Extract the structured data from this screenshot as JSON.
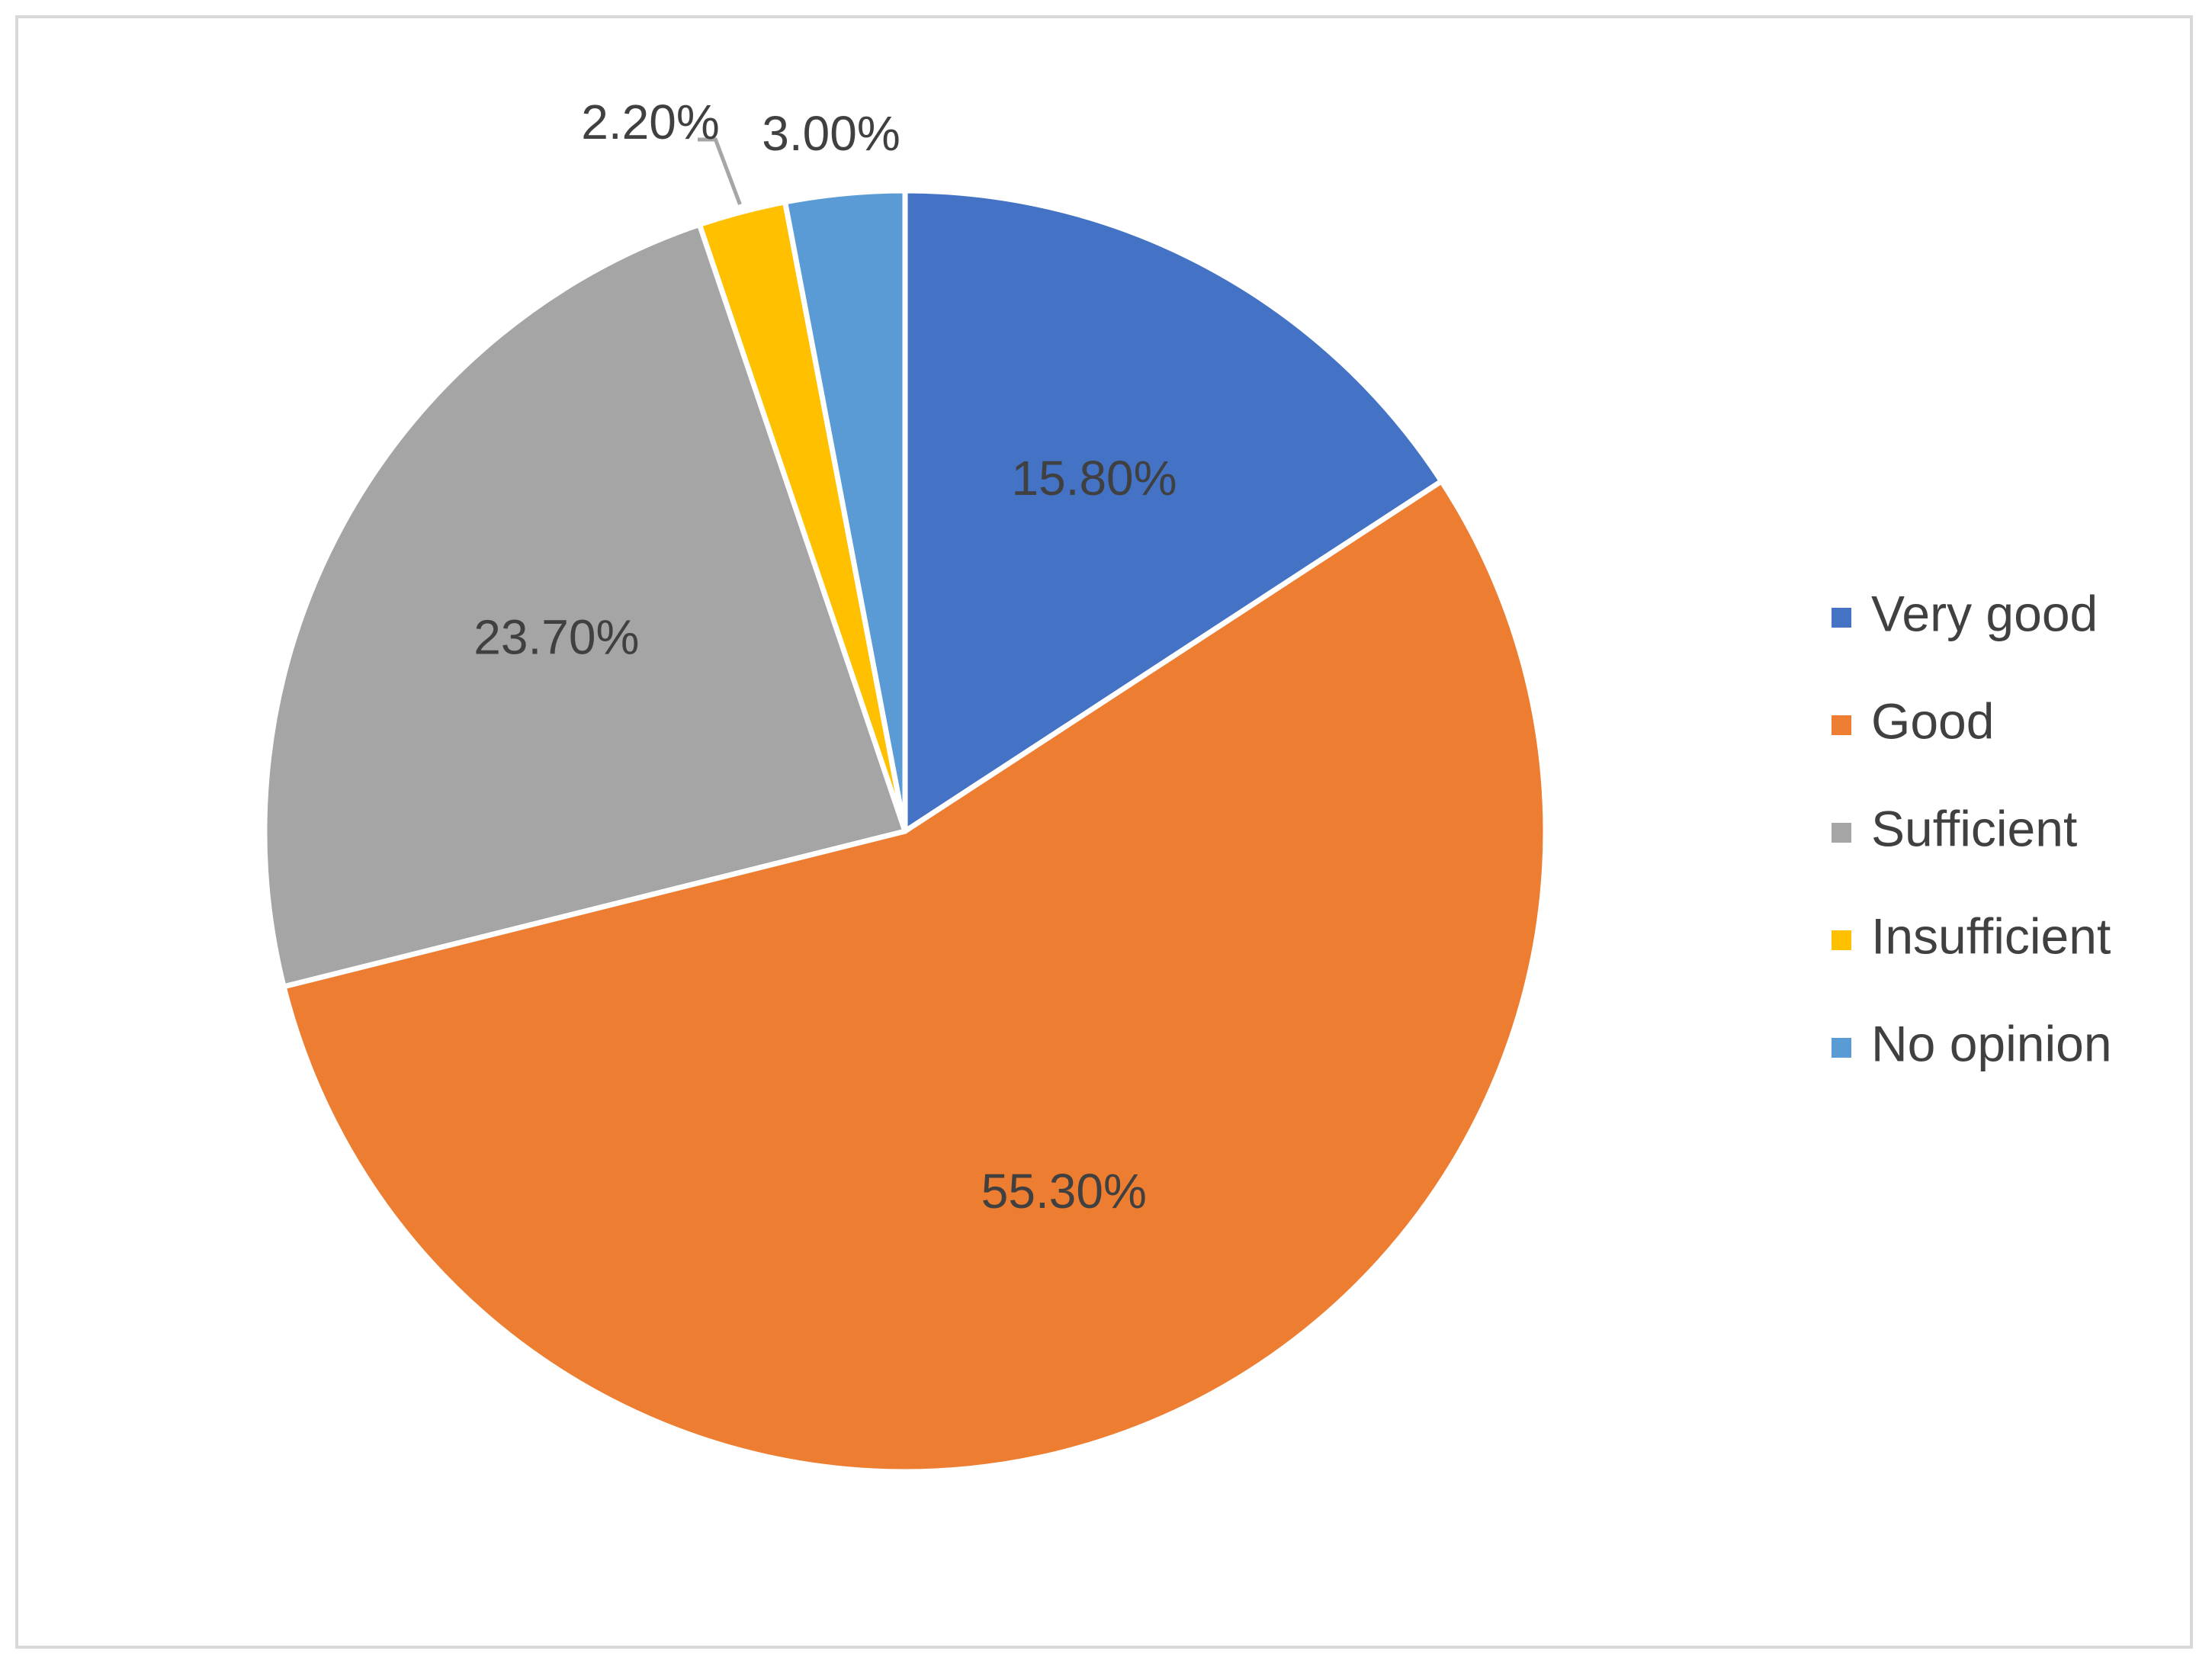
{
  "chart_data": {
    "type": "pie",
    "title": "",
    "categories": [
      "Very good",
      "Good",
      "Sufficient",
      "Insufficient",
      "No opinion"
    ],
    "values": [
      15.8,
      55.3,
      23.7,
      2.2,
      3.0
    ],
    "labels": [
      "15.80%",
      "55.30%",
      "23.70%",
      "2.20%",
      "3.00%"
    ],
    "colors": [
      "#4472C4",
      "#ED7D31",
      "#A5A5A5",
      "#FFC000",
      "#5B9BD5"
    ],
    "legend_position": "right",
    "start_angle": "12 o'clock",
    "direction": "clockwise"
  }
}
